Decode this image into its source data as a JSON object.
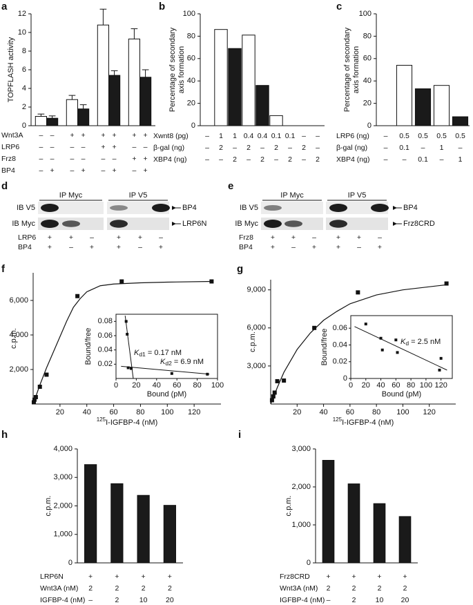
{
  "chart_data": [
    {
      "panel": "a",
      "type": "bar",
      "y_label": [
        "TOPFLASH activity"
      ],
      "ylim": [
        0,
        12
      ],
      "yticks": [
        0,
        2,
        4,
        6,
        8,
        10,
        12
      ],
      "series": [
        {
          "color": "#ffffff",
          "values": [
            1.0,
            2.8,
            10.8,
            9.3
          ],
          "errors": [
            0.25,
            0.45,
            1.7,
            1.1
          ]
        },
        {
          "color": "#1a1a1a",
          "values": [
            0.8,
            1.8,
            5.4,
            5.2
          ],
          "errors": [
            0.25,
            0.45,
            0.5,
            0.8
          ]
        }
      ],
      "conditions": [
        {
          "label": "Wnt3A",
          "values": [
            "–",
            "–",
            "+",
            "+",
            "+",
            "+",
            "+",
            "+"
          ]
        },
        {
          "label": "LRP6",
          "values": [
            "–",
            "–",
            "–",
            "–",
            "+",
            "+",
            "–",
            "–"
          ]
        },
        {
          "label": "Frz8",
          "values": [
            "–",
            "–",
            "–",
            "–",
            "–",
            "–",
            "+",
            "+"
          ]
        },
        {
          "label": "BP4",
          "values": [
            "–",
            "+",
            "–",
            "+",
            "–",
            "+",
            "–",
            "+"
          ]
        }
      ]
    },
    {
      "panel": "b",
      "type": "bar",
      "y_label": [
        "Percentage of secondary",
        "axis formation"
      ],
      "ylim": [
        0,
        100
      ],
      "yticks": [
        0,
        20,
        40,
        60,
        80,
        100
      ],
      "values": [
        0,
        86,
        69,
        81,
        36,
        9,
        0,
        0,
        0
      ],
      "colors": [
        "#ffffff",
        "#ffffff",
        "#1a1a1a",
        "#ffffff",
        "#1a1a1a",
        "#ffffff",
        "#1a1a1a",
        "#ffffff",
        "#1a1a1a"
      ],
      "conditions": [
        {
          "label": "Xwnt8 (pg)",
          "values": [
            "–",
            "1",
            "1",
            "0.4",
            "0.4",
            "0.1",
            "0.1",
            "–",
            "–"
          ]
        },
        {
          "label": "β-gal (ng)",
          "values": [
            "–",
            "2",
            "–",
            "2",
            "–",
            "2",
            "–",
            "2",
            "–"
          ]
        },
        {
          "label": "XBP4 (ng)",
          "values": [
            "–",
            "–",
            "2",
            "–",
            "2",
            "–",
            "2",
            "–",
            "2"
          ]
        }
      ]
    },
    {
      "panel": "c",
      "type": "bar",
      "y_label": [
        "Percentage of secondary",
        "axis formation"
      ],
      "ylim": [
        0,
        100
      ],
      "yticks": [
        0,
        20,
        40,
        60,
        80,
        100
      ],
      "values": [
        0,
        54,
        33,
        36,
        8
      ],
      "colors": [
        "#ffffff",
        "#ffffff",
        "#1a1a1a",
        "#ffffff",
        "#1a1a1a"
      ],
      "conditions": [
        {
          "label": "LRP6 (ng)",
          "values": [
            "–",
            "0.5",
            "0.5",
            "0.5",
            "0.5"
          ]
        },
        {
          "label": "β-gal (ng)",
          "values": [
            "–",
            "0.1",
            "–",
            "1",
            "–"
          ]
        },
        {
          "label": "XBP4 (ng)",
          "values": [
            "–",
            "–",
            "0.1",
            "–",
            "1"
          ]
        }
      ]
    },
    {
      "panel": "d",
      "type": "blot",
      "ip_labels": [
        "IP Myc",
        "IP V5"
      ],
      "ib_labels": [
        "IB V5",
        "IB Myc"
      ],
      "band_labels": [
        "BP4",
        "LRP6N"
      ],
      "conditions": [
        {
          "label": "LRP6",
          "values": [
            "+",
            "+",
            "–",
            "+",
            "+",
            "–"
          ]
        },
        {
          "label": "BP4",
          "values": [
            "+",
            "–",
            "+",
            "+",
            "–",
            "+"
          ]
        }
      ]
    },
    {
      "panel": "e",
      "type": "blot",
      "ip_labels": [
        "IP Myc",
        "IP V5"
      ],
      "ib_labels": [
        "IB V5",
        "IB Myc"
      ],
      "band_labels": [
        "BP4",
        "Frz8CRD"
      ],
      "conditions": [
        {
          "label": "Frz8",
          "values": [
            "+",
            "+",
            "–",
            "+",
            "+",
            "–"
          ]
        },
        {
          "label": "BP4",
          "values": [
            "+",
            "–",
            "+",
            "+",
            "–",
            "+"
          ]
        }
      ]
    },
    {
      "panel": "f",
      "type": "scatter",
      "y_label": [
        "c.p.m."
      ],
      "x_label": {
        "sup": "125",
        "text": "I-IGFBP-4 (nM)"
      },
      "xlim": [
        0,
        140
      ],
      "xticks": [
        20,
        40,
        60,
        80,
        100,
        120
      ],
      "ylim": [
        0,
        7600
      ],
      "yticks": [
        {
          "value": 2000,
          "label": "2,000"
        },
        {
          "value": 4000,
          "label": "4,000"
        },
        {
          "value": 6000,
          "label": "6,000"
        }
      ],
      "x": [
        0.5,
        1,
        2,
        5,
        10,
        33,
        66,
        133
      ],
      "y": [
        100,
        250,
        400,
        1000,
        1700,
        6250,
        7100,
        7100
      ],
      "fit": {
        "x": [
          0,
          5,
          10,
          15,
          20,
          25,
          30,
          35,
          40,
          50,
          60,
          80,
          100,
          133
        ],
        "y": [
          0,
          1100,
          2100,
          3000,
          3900,
          4800,
          5600,
          6100,
          6500,
          6850,
          6950,
          7020,
          7060,
          7100
        ]
      },
      "inset": {
        "x_label": "Bound (pM)",
        "y_label": "Bound/free",
        "xlim": [
          0,
          100
        ],
        "xticks": [
          0,
          20,
          40,
          60,
          80,
          100
        ],
        "ylim": [
          0,
          0.09
        ],
        "yticks": [
          0.02,
          0.04,
          0.06,
          0.08
        ],
        "x": [
          10,
          11,
          12,
          15,
          55,
          90
        ],
        "y": [
          0.08,
          0.062,
          0.015,
          0.014,
          0.007,
          0.006
        ],
        "lines": [
          {
            "x": [
              9,
              17
            ],
            "y": [
              0.088,
              0
            ]
          },
          {
            "x": [
              5,
              92
            ],
            "y": [
              0.017,
              0.006
            ]
          }
        ],
        "annotations": [
          {
            "k": "K",
            "sub": "d1",
            "text": " = 0.17 nM"
          },
          {
            "k": "K",
            "sub": "d2",
            "text": " = 6.9 nM"
          }
        ]
      }
    },
    {
      "panel": "g",
      "type": "scatter",
      "y_label": [
        "c.p.m."
      ],
      "x_label": {
        "sup": "125",
        "text": "I-IGFBP-4 (nM)"
      },
      "xlim": [
        0,
        140
      ],
      "xticks": [
        20,
        40,
        60,
        80,
        100,
        120
      ],
      "ylim": [
        0,
        9800
      ],
      "yticks": [
        {
          "value": 3000,
          "label": "3,000"
        },
        {
          "value": 6000,
          "label": "6,000"
        },
        {
          "value": 9000,
          "label": "9,000"
        }
      ],
      "x": [
        1,
        2,
        3,
        5,
        10,
        33,
        66,
        133
      ],
      "y": [
        300,
        600,
        900,
        1800,
        1850,
        6000,
        8800,
        9500
      ],
      "fit": {
        "x": [
          0,
          5,
          10,
          20,
          30,
          40,
          50,
          60,
          80,
          100,
          133
        ],
        "y": [
          0,
          1300,
          2500,
          4300,
          5600,
          6600,
          7300,
          7900,
          8600,
          9000,
          9400
        ]
      },
      "inset": {
        "x_label": "Bound (pM)",
        "y_label": "Bound/free",
        "xlim": [
          0,
          135
        ],
        "xticks": [
          0,
          20,
          40,
          60,
          80,
          100,
          120
        ],
        "ylim": [
          0,
          0.075
        ],
        "yticks": [
          0,
          0.02,
          0.04,
          0.06
        ],
        "x": [
          20,
          40,
          42,
          60,
          62,
          120,
          118
        ],
        "y": [
          0.065,
          0.048,
          0.034,
          0.046,
          0.031,
          0.024,
          0.01
        ],
        "lines": [
          {
            "x": [
              5,
              128
            ],
            "y": [
              0.062,
              0.01
            ]
          }
        ],
        "annotations": [
          {
            "k": "K",
            "sub": "d",
            "text": " = 2.5 nM"
          }
        ]
      }
    },
    {
      "panel": "h",
      "type": "bar",
      "y_label": [
        "c.p.m."
      ],
      "ylim": [
        0,
        4000
      ],
      "yticks": [
        0,
        {
          "value": 1000,
          "label": "1,000"
        },
        {
          "value": 2000,
          "label": "2,000"
        },
        {
          "value": 3000,
          "label": "3,000"
        },
        {
          "value": 4000,
          "label": "4,000"
        }
      ],
      "values": [
        3450,
        2780,
        2370,
        2020
      ],
      "color": "#1a1a1a",
      "conditions": [
        {
          "label": "LRP6N",
          "values": [
            "+",
            "+",
            "+",
            "+"
          ]
        },
        {
          "label": "Wnt3A (nM)",
          "values": [
            "2",
            "2",
            "2",
            "2"
          ]
        },
        {
          "label": "IGFBP-4 (nM)",
          "values": [
            "–",
            "2",
            "10",
            "20"
          ]
        }
      ]
    },
    {
      "panel": "i",
      "type": "bar",
      "y_label": [
        "c.p.m."
      ],
      "ylim": [
        0,
        3000
      ],
      "yticks": [
        0,
        {
          "value": 1000,
          "label": "1,000"
        },
        {
          "value": 2000,
          "label": "2,000"
        },
        {
          "value": 3000,
          "label": "3,000"
        }
      ],
      "values": [
        2700,
        2080,
        1560,
        1220
      ],
      "color": "#1a1a1a",
      "conditions": [
        {
          "label": "Frz8CRD",
          "values": [
            "+",
            "+",
            "+",
            "+"
          ]
        },
        {
          "label": "Wnt3A (nM)",
          "values": [
            "2",
            "2",
            "2",
            "2"
          ]
        },
        {
          "label": "IGFBP-4 (nM)",
          "values": [
            "–",
            "2",
            "10",
            "20"
          ]
        }
      ]
    }
  ]
}
